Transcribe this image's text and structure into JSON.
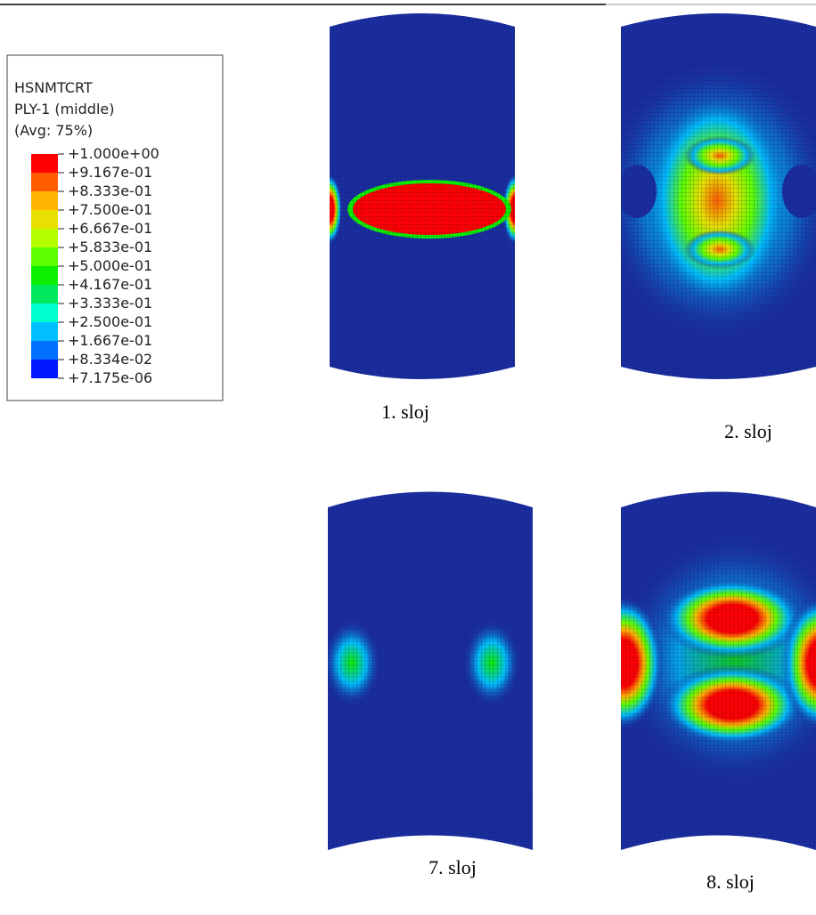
{
  "legend": {
    "title": [
      "HSNMTCRT",
      "PLY-1 (middle)",
      "(Avg: 75%)"
    ],
    "levels": [
      "+1.000e+00",
      "+9.167e-01",
      "+8.333e-01",
      "+7.500e-01",
      "+6.667e-01",
      "+5.833e-01",
      "+5.000e-01",
      "+4.167e-01",
      "+3.333e-01",
      "+2.500e-01",
      "+1.667e-01",
      "+8.334e-02",
      "+7.175e-06"
    ],
    "colors": [
      "#ff0000",
      "#ff5c00",
      "#ffb500",
      "#e8e000",
      "#b4ff00",
      "#5eff00",
      "#0cf000",
      "#00e85c",
      "#00ffd0",
      "#00c0ff",
      "#0070ff",
      "#0018ff"
    ]
  },
  "panels": [
    {
      "caption": "1. sloj"
    },
    {
      "caption": "2. sloj"
    },
    {
      "caption": "7. sloj"
    },
    {
      "caption": "8. sloj"
    }
  ]
}
